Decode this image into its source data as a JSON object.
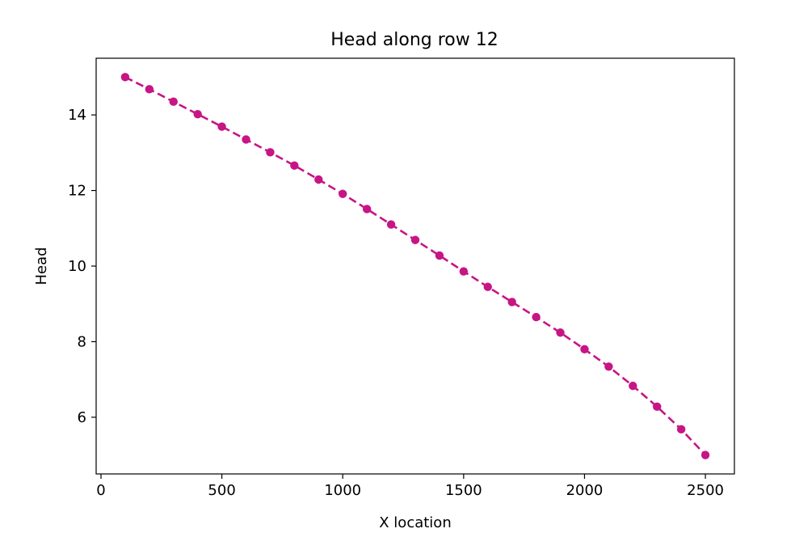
{
  "chart_data": {
    "type": "line",
    "title": "Head along row 12",
    "xlabel": "X location",
    "ylabel": "Head",
    "xlim": [
      -20,
      2620
    ],
    "ylim": [
      4.5,
      15.5
    ],
    "xticks": [
      0,
      500,
      1000,
      1500,
      2000,
      2500
    ],
    "yticks": [
      6,
      8,
      10,
      12,
      14
    ],
    "grid": false,
    "legend": "none",
    "line_style": "dashed",
    "marker": "circle",
    "color": "#c71585",
    "series": [
      {
        "x": [
          100,
          200,
          300,
          400,
          500,
          600,
          700,
          800,
          900,
          1000,
          1100,
          1200,
          1300,
          1400,
          1500,
          1600,
          1700,
          1800,
          1900,
          2000,
          2100,
          2200,
          2300,
          2400,
          2500
        ],
        "y": [
          15.0,
          14.68,
          14.35,
          14.02,
          13.69,
          13.35,
          13.01,
          12.66,
          12.29,
          11.91,
          11.51,
          11.1,
          10.69,
          10.28,
          9.86,
          9.45,
          9.05,
          8.65,
          8.24,
          7.8,
          7.34,
          6.83,
          6.28,
          5.68,
          5.0
        ]
      }
    ]
  }
}
